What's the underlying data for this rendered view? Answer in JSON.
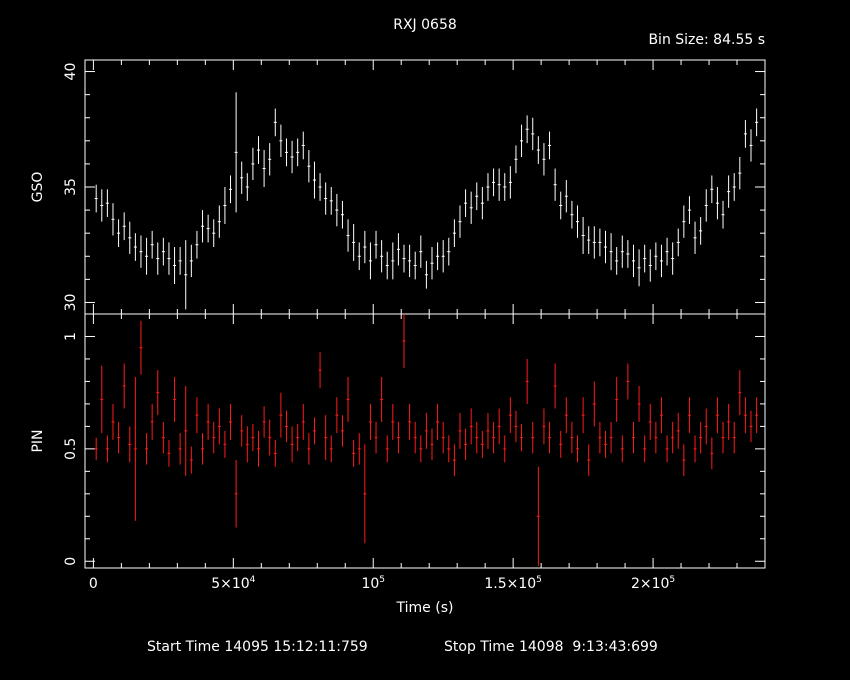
{
  "chart_data": [
    {
      "panel": "upper",
      "type": "scatter",
      "style": "error-bars",
      "title": "RXJ 0658",
      "bin_size_label": "Bin Size: 84.55 s",
      "ylabel": "GSO",
      "ylim": [
        29.5,
        40.5
      ],
      "xlim": [
        -3000,
        240000
      ],
      "yticks_major": [
        30,
        35,
        40
      ],
      "yticks_minor": [
        31,
        32,
        33,
        34,
        36,
        37,
        38,
        39
      ],
      "color": "#ffffff",
      "x": [
        1000,
        3000,
        5000,
        7000,
        9000,
        11000,
        13000,
        15000,
        17000,
        19000,
        21000,
        23000,
        25000,
        27000,
        29000,
        31000,
        33000,
        35000,
        37000,
        39000,
        41000,
        43000,
        45000,
        47000,
        49000,
        51000,
        53000,
        55000,
        57000,
        59000,
        61000,
        63000,
        65000,
        67000,
        69000,
        71000,
        73000,
        75000,
        77000,
        79000,
        81000,
        83000,
        85000,
        87000,
        89000,
        91000,
        93000,
        95000,
        97000,
        99000,
        101000,
        103000,
        105000,
        107000,
        109000,
        111000,
        113000,
        115000,
        117000,
        119000,
        121000,
        123000,
        125000,
        127000,
        129000,
        131000,
        133000,
        135000,
        137000,
        139000,
        141000,
        143000,
        145000,
        147000,
        149000,
        151000,
        153000,
        155000,
        157000,
        159000,
        161000,
        163000,
        165000,
        167000,
        169000,
        171000,
        173000,
        175000,
        177000,
        179000,
        181000,
        183000,
        185000,
        187000,
        189000,
        191000,
        193000,
        195000,
        197000,
        199000,
        201000,
        203000,
        205000,
        207000,
        209000,
        211000,
        213000,
        215000,
        217000,
        219000,
        221000,
        223000,
        225000,
        227000,
        229000,
        231000,
        233000,
        235000,
        237000
      ],
      "y": [
        34.5,
        34.2,
        34.3,
        33.6,
        33.0,
        33.3,
        32.8,
        32.4,
        32.2,
        32.0,
        32.5,
        31.9,
        32.2,
        31.9,
        31.6,
        31.8,
        31.2,
        31.8,
        32.5,
        33.3,
        33.2,
        33.0,
        33.5,
        34.2,
        34.9,
        36.5,
        35.4,
        35.0,
        36.0,
        36.6,
        35.8,
        36.2,
        37.8,
        37.0,
        36.5,
        36.3,
        36.5,
        36.8,
        35.9,
        35.3,
        35.0,
        34.5,
        34.4,
        34.0,
        33.8,
        32.9,
        32.6,
        32.0,
        32.4,
        31.8,
        32.5,
        32.0,
        31.6,
        31.8,
        32.3,
        31.9,
        31.8,
        31.6,
        32.2,
        31.2,
        31.7,
        32.0,
        32.0,
        32.2,
        33.0,
        33.5,
        34.3,
        34.1,
        34.6,
        34.3,
        35.0,
        35.2,
        35.1,
        35.0,
        35.2,
        36.2,
        37.0,
        37.5,
        37.3,
        36.6,
        36.2,
        36.8,
        35.1,
        34.2,
        34.6,
        33.8,
        33.5,
        32.9,
        32.7,
        32.6,
        32.6,
        32.4,
        32.2,
        31.8,
        32.2,
        32.1,
        31.8,
        31.5,
        31.9,
        31.6,
        32.0,
        31.8,
        32.2,
        31.9,
        32.6,
        33.5,
        34.0,
        32.8,
        33.1,
        34.2,
        34.9,
        34.3,
        33.8,
        34.8,
        35.0,
        35.6,
        37.3,
        36.8,
        37.8
      ],
      "yerr": [
        0.6,
        0.7,
        0.6,
        0.7,
        0.6,
        0.6,
        0.7,
        0.6,
        0.7,
        0.8,
        0.6,
        0.7,
        0.6,
        0.7,
        0.8,
        0.6,
        1.5,
        0.7,
        0.6,
        0.7,
        0.6,
        0.6,
        0.7,
        0.8,
        0.6,
        2.6,
        0.7,
        0.6,
        0.7,
        0.6,
        0.8,
        0.7,
        0.6,
        0.7,
        0.6,
        0.7,
        0.6,
        0.6,
        0.7,
        0.8,
        0.6,
        0.7,
        0.6,
        0.7,
        0.6,
        0.7,
        0.8,
        0.6,
        0.7,
        0.8,
        0.6,
        0.7,
        0.6,
        0.8,
        0.7,
        0.6,
        0.7,
        0.6,
        0.7,
        0.6,
        0.7,
        0.6,
        0.7,
        0.6,
        0.6,
        0.7,
        0.6,
        0.7,
        0.6,
        0.7,
        0.6,
        0.6,
        0.7,
        0.6,
        0.7,
        0.6,
        0.7,
        0.6,
        0.7,
        0.6,
        0.7,
        0.6,
        0.7,
        0.6,
        0.7,
        0.6,
        0.7,
        0.8,
        0.6,
        0.7,
        0.6,
        0.7,
        0.8,
        0.6,
        0.7,
        0.6,
        0.7,
        0.8,
        0.6,
        0.7,
        0.6,
        0.7,
        0.6,
        0.7,
        0.6,
        0.7,
        0.6,
        0.7,
        0.6,
        0.7,
        0.6,
        0.7,
        0.6,
        0.7,
        0.6,
        0.7,
        0.6,
        0.7,
        0.6
      ]
    },
    {
      "panel": "lower",
      "type": "scatter",
      "style": "error-bars",
      "xlabel": "Time (s)",
      "ylabel": "PIN",
      "ylim": [
        -0.03,
        1.1
      ],
      "xlim": [
        -3000,
        240000
      ],
      "xticks_major": [
        {
          "value": 0,
          "base": "0",
          "exp": ""
        },
        {
          "value": 50000,
          "base": "5×10",
          "exp": "4"
        },
        {
          "value": 100000,
          "base": "10",
          "exp": "5"
        },
        {
          "value": 150000,
          "base": "1.5×10",
          "exp": "5"
        },
        {
          "value": 200000,
          "base": "2×10",
          "exp": "5"
        }
      ],
      "xticks_minor": [
        10000,
        20000,
        30000,
        40000,
        60000,
        70000,
        80000,
        90000,
        110000,
        120000,
        130000,
        140000,
        160000,
        170000,
        180000,
        190000,
        210000,
        220000,
        230000
      ],
      "yticks_major": [
        0,
        0.5,
        1
      ],
      "yticks_minor": [
        0.1,
        0.2,
        0.3,
        0.4,
        0.6,
        0.7,
        0.8,
        0.9
      ],
      "color": "#ff1a1a",
      "x": [
        1000,
        3000,
        5000,
        7000,
        9000,
        11000,
        13000,
        15000,
        17000,
        19000,
        21000,
        23000,
        25000,
        27000,
        29000,
        31000,
        33000,
        35000,
        37000,
        39000,
        41000,
        43000,
        45000,
        47000,
        49000,
        51000,
        53000,
        55000,
        57000,
        59000,
        61000,
        63000,
        65000,
        67000,
        69000,
        71000,
        73000,
        75000,
        77000,
        79000,
        81000,
        83000,
        85000,
        87000,
        89000,
        91000,
        93000,
        95000,
        97000,
        99000,
        101000,
        103000,
        105000,
        107000,
        109000,
        111000,
        113000,
        115000,
        117000,
        119000,
        121000,
        123000,
        125000,
        127000,
        129000,
        131000,
        133000,
        135000,
        137000,
        139000,
        141000,
        143000,
        145000,
        147000,
        149000,
        151000,
        153000,
        155000,
        157000,
        159000,
        161000,
        163000,
        165000,
        167000,
        169000,
        171000,
        173000,
        175000,
        177000,
        179000,
        181000,
        183000,
        185000,
        187000,
        189000,
        191000,
        193000,
        195000,
        197000,
        199000,
        201000,
        203000,
        205000,
        207000,
        209000,
        211000,
        213000,
        215000,
        217000,
        219000,
        221000,
        223000,
        225000,
        227000,
        229000,
        231000,
        233000,
        235000,
        237000
      ],
      "y": [
        0.5,
        0.72,
        0.5,
        0.62,
        0.55,
        0.78,
        0.52,
        0.5,
        0.95,
        0.5,
        0.62,
        0.75,
        0.55,
        0.48,
        0.72,
        0.5,
        0.58,
        0.45,
        0.65,
        0.5,
        0.62,
        0.55,
        0.6,
        0.52,
        0.62,
        0.3,
        0.58,
        0.52,
        0.55,
        0.5,
        0.62,
        0.55,
        0.48,
        0.65,
        0.6,
        0.52,
        0.55,
        0.62,
        0.5,
        0.58,
        0.85,
        0.55,
        0.5,
        0.65,
        0.58,
        0.72,
        0.48,
        0.5,
        0.3,
        0.62,
        0.55,
        0.72,
        0.5,
        0.62,
        0.55,
        0.98,
        0.62,
        0.55,
        0.5,
        0.58,
        0.52,
        0.62,
        0.55,
        0.5,
        0.45,
        0.58,
        0.52,
        0.6,
        0.55,
        0.52,
        0.58,
        0.55,
        0.6,
        0.5,
        0.65,
        0.6,
        0.55,
        0.8,
        0.55,
        0.2,
        0.6,
        0.55,
        0.78,
        0.52,
        0.65,
        0.55,
        0.5,
        0.65,
        0.45,
        0.7,
        0.55,
        0.52,
        0.55,
        0.72,
        0.5,
        0.8,
        0.55,
        0.7,
        0.5,
        0.62,
        0.55,
        0.65,
        0.5,
        0.55,
        0.58,
        0.45,
        0.65,
        0.5,
        0.55,
        0.6,
        0.48,
        0.65,
        0.55,
        0.62,
        0.55,
        0.75,
        0.65,
        0.6,
        0.65
      ],
      "yerr": [
        0.05,
        0.15,
        0.06,
        0.08,
        0.07,
        0.1,
        0.08,
        0.32,
        0.12,
        0.07,
        0.08,
        0.1,
        0.07,
        0.06,
        0.1,
        0.07,
        0.2,
        0.06,
        0.08,
        0.07,
        0.08,
        0.07,
        0.08,
        0.06,
        0.08,
        0.15,
        0.07,
        0.08,
        0.06,
        0.08,
        0.07,
        0.08,
        0.06,
        0.1,
        0.07,
        0.08,
        0.06,
        0.08,
        0.07,
        0.06,
        0.08,
        0.1,
        0.06,
        0.08,
        0.07,
        0.1,
        0.06,
        0.07,
        0.22,
        0.08,
        0.07,
        0.1,
        0.06,
        0.08,
        0.07,
        0.12,
        0.08,
        0.07,
        0.06,
        0.08,
        0.07,
        0.08,
        0.07,
        0.06,
        0.07,
        0.08,
        0.07,
        0.08,
        0.07,
        0.06,
        0.08,
        0.07,
        0.08,
        0.06,
        0.08,
        0.07,
        0.06,
        0.1,
        0.07,
        0.22,
        0.08,
        0.07,
        0.1,
        0.06,
        0.08,
        0.07,
        0.06,
        0.08,
        0.07,
        0.1,
        0.07,
        0.06,
        0.07,
        0.1,
        0.06,
        0.08,
        0.07,
        0.08,
        0.06,
        0.08,
        0.07,
        0.08,
        0.06,
        0.07,
        0.08,
        0.07,
        0.08,
        0.06,
        0.07,
        0.08,
        0.07,
        0.08,
        0.07,
        0.08,
        0.07,
        0.1,
        0.08,
        0.07,
        0.08
      ]
    }
  ],
  "footer": {
    "start_time": "Start Time 14095 15:12:11:759",
    "stop_time": "Stop Time 14098  9:13:43:699"
  }
}
